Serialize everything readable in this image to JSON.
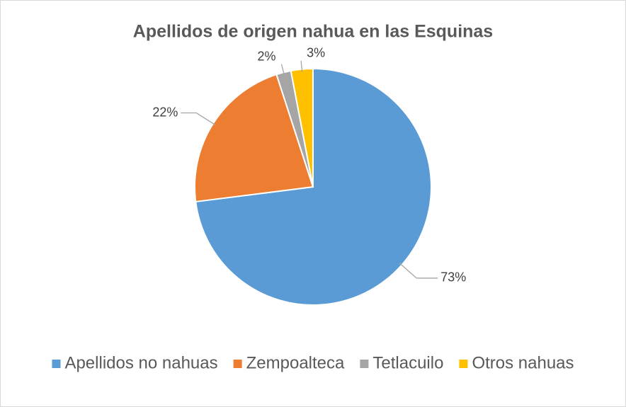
{
  "chart_data": {
    "type": "pie",
    "title": "Apellidos de origen nahua en las Esquinas",
    "categories": [
      "Apellidos no nahuas",
      "Zempoalteca",
      "Tetlacuilo",
      "Otros nahuas"
    ],
    "values": [
      73,
      22,
      2,
      3
    ],
    "value_labels": [
      "73%",
      "22%",
      "2%",
      "3%"
    ],
    "colors": [
      "#5b9bd5",
      "#ed7d31",
      "#a5a5a5",
      "#ffc000"
    ],
    "legend": "bottom"
  }
}
